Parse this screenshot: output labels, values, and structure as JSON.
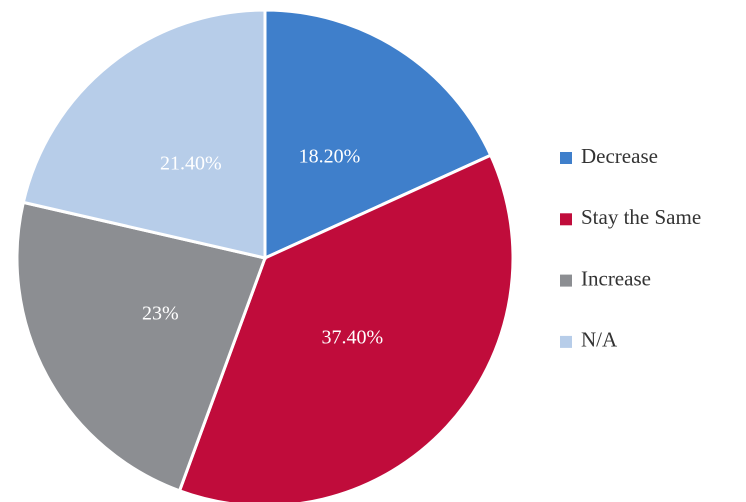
{
  "chart_data": {
    "type": "pie",
    "categories": [
      "Decrease",
      "Stay the Same",
      "Increase",
      "N/A"
    ],
    "values": [
      18.2,
      37.4,
      23,
      21.4
    ],
    "value_labels": [
      "18.20%",
      "37.40%",
      "23%",
      "21.40%"
    ],
    "colors": [
      "#3f7fcb",
      "#c00c3b",
      "#8c8e92",
      "#b7cde9"
    ],
    "legend": "right"
  }
}
